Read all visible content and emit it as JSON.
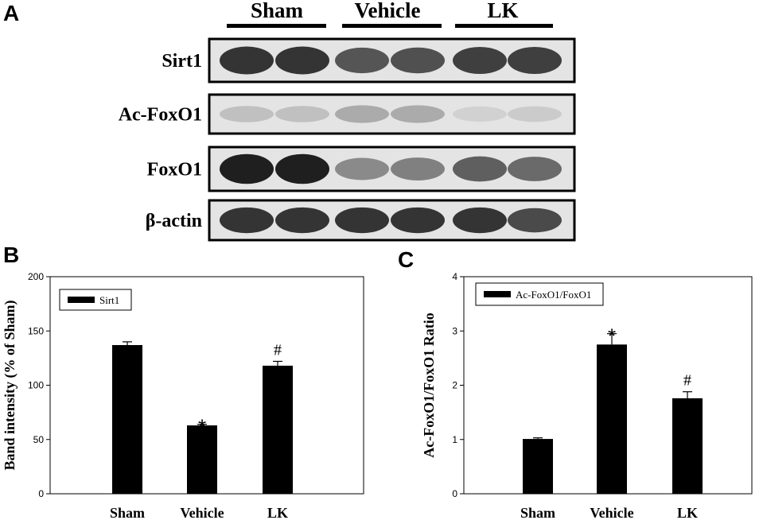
{
  "panels": {
    "a": "A",
    "b": "B",
    "c": "C"
  },
  "blot": {
    "groups": [
      "Sham",
      "Vehicle",
      "LK"
    ],
    "rows": [
      {
        "label": "Sirt1",
        "intensity": [
          0.85,
          0.85,
          0.7,
          0.72,
          0.8,
          0.8
        ]
      },
      {
        "label": "Ac-FoxO1",
        "intensity": [
          0.2,
          0.2,
          0.3,
          0.3,
          0.12,
          0.15
        ]
      },
      {
        "label": "FoxO1",
        "intensity": [
          0.95,
          0.95,
          0.45,
          0.5,
          0.65,
          0.6
        ]
      },
      {
        "label": "β-actin",
        "intensity": [
          0.85,
          0.85,
          0.85,
          0.85,
          0.85,
          0.75
        ]
      }
    ]
  },
  "chart_data": [
    {
      "type": "bar",
      "categories": [
        "Sham",
        "Vehicle",
        "LK"
      ],
      "series": [
        {
          "name": "Sirt1",
          "values": [
            137,
            63,
            118
          ],
          "errors": [
            3,
            1,
            4
          ]
        }
      ],
      "annotations": [
        "",
        "*",
        "#"
      ],
      "xlabel": "",
      "ylabel": "Band intensity (% of Sham)",
      "ylim": [
        0,
        200
      ],
      "yticks": [
        0,
        50,
        100,
        150,
        200
      ],
      "legend": "top-left",
      "grid": false
    },
    {
      "type": "bar",
      "categories": [
        "Sham",
        "Vehicle",
        "LK"
      ],
      "series": [
        {
          "name": "Ac-FoxO1/FoxO1",
          "values": [
            1.01,
            2.75,
            1.76
          ],
          "errors": [
            0.02,
            0.2,
            0.12
          ]
        }
      ],
      "annotations": [
        "",
        "*",
        "#"
      ],
      "xlabel": "",
      "ylabel": "Ac-FoxO1/FoxO1 Ratio",
      "ylim": [
        0,
        4
      ],
      "yticks": [
        0,
        1,
        2,
        3,
        4
      ],
      "legend": "top-left",
      "grid": false
    }
  ]
}
